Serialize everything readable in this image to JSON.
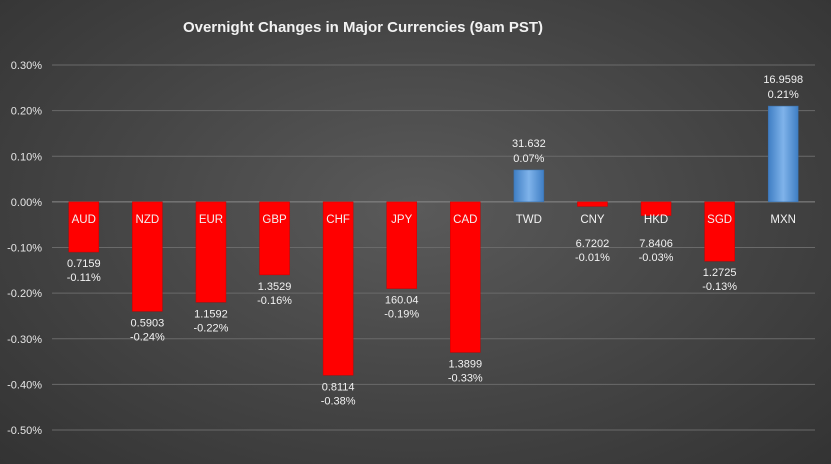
{
  "chart_data": {
    "type": "bar",
    "title": "Overnight Changes in Major Currencies (9am PST)",
    "categories": [
      "AUD",
      "NZD",
      "EUR",
      "GBP",
      "CHF",
      "JPY",
      "CAD",
      "TWD",
      "CNY",
      "HKD",
      "SGD",
      "MXN"
    ],
    "series": [
      {
        "values": [
          -0.11,
          -0.24,
          -0.22,
          -0.16,
          -0.38,
          -0.19,
          -0.33,
          0.07,
          -0.01,
          -0.03,
          -0.13,
          0.21
        ],
        "rates": [
          "0.7159",
          "0.5903",
          "1.1592",
          "1.3529",
          "0.8114",
          "160.04",
          "1.3899",
          "31.632",
          "6.7202",
          "7.8406",
          "1.2725",
          "16.9598"
        ],
        "pct_labels": [
          "-0.11%",
          "-0.24%",
          "-0.22%",
          "-0.16%",
          "-0.38%",
          "-0.19%",
          "-0.33%",
          "0.07%",
          "-0.01%",
          "-0.03%",
          "-0.13%",
          "0.21%"
        ]
      }
    ],
    "ylim": [
      -0.5,
      0.3
    ],
    "yticks": [
      0.3,
      0.2,
      0.1,
      0.0,
      -0.1,
      -0.2,
      -0.3,
      -0.4,
      -0.5
    ],
    "ytick_labels": [
      "0.30%",
      "0.20%",
      "0.10%",
      "0.00%",
      "-0.10%",
      "-0.20%",
      "-0.30%",
      "-0.40%",
      "-0.50%"
    ],
    "grid": true,
    "colors": {
      "negative": "#ff0000",
      "positive": "#5b9bd5"
    }
  }
}
